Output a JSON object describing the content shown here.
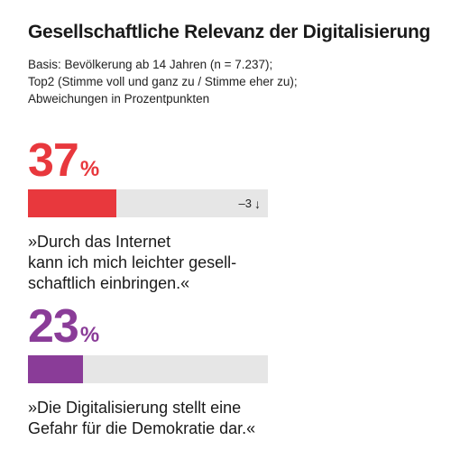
{
  "header": {
    "title": "Gesellschaftliche Relevanz der Digitalisierung",
    "basis_lines": [
      "Basis: Bevölkerung ab 14 Jahren (n = 7.237);",
      "Top2 (Stimme voll und ganz zu / Stimme eher zu);",
      "Abweichungen in Prozentpunkten"
    ]
  },
  "colors": {
    "red": "#e8383d",
    "purple": "#8a3c98",
    "track": "#e6e6e6"
  },
  "chart_data": {
    "type": "bar",
    "title": "Gesellschaftliche Relevanz der Digitalisierung",
    "unit": "%",
    "xlim": [
      0,
      100
    ],
    "items": [
      {
        "value": 37,
        "value_label": "37",
        "unit_label": "%",
        "color": "#e8383d",
        "delta": "–3",
        "delta_icon": "arrow-down-icon",
        "statement_lines": [
          "»Durch das Internet",
          "kann ich mich leichter gesell-",
          "schaftlich einbringen.«"
        ]
      },
      {
        "value": 23,
        "value_label": "23",
        "unit_label": "%",
        "color": "#8a3c98",
        "delta": "",
        "statement_lines": [
          "»Die Digitalisierung stellt eine",
          "Gefahr für die Demokratie dar.«"
        ]
      }
    ]
  }
}
